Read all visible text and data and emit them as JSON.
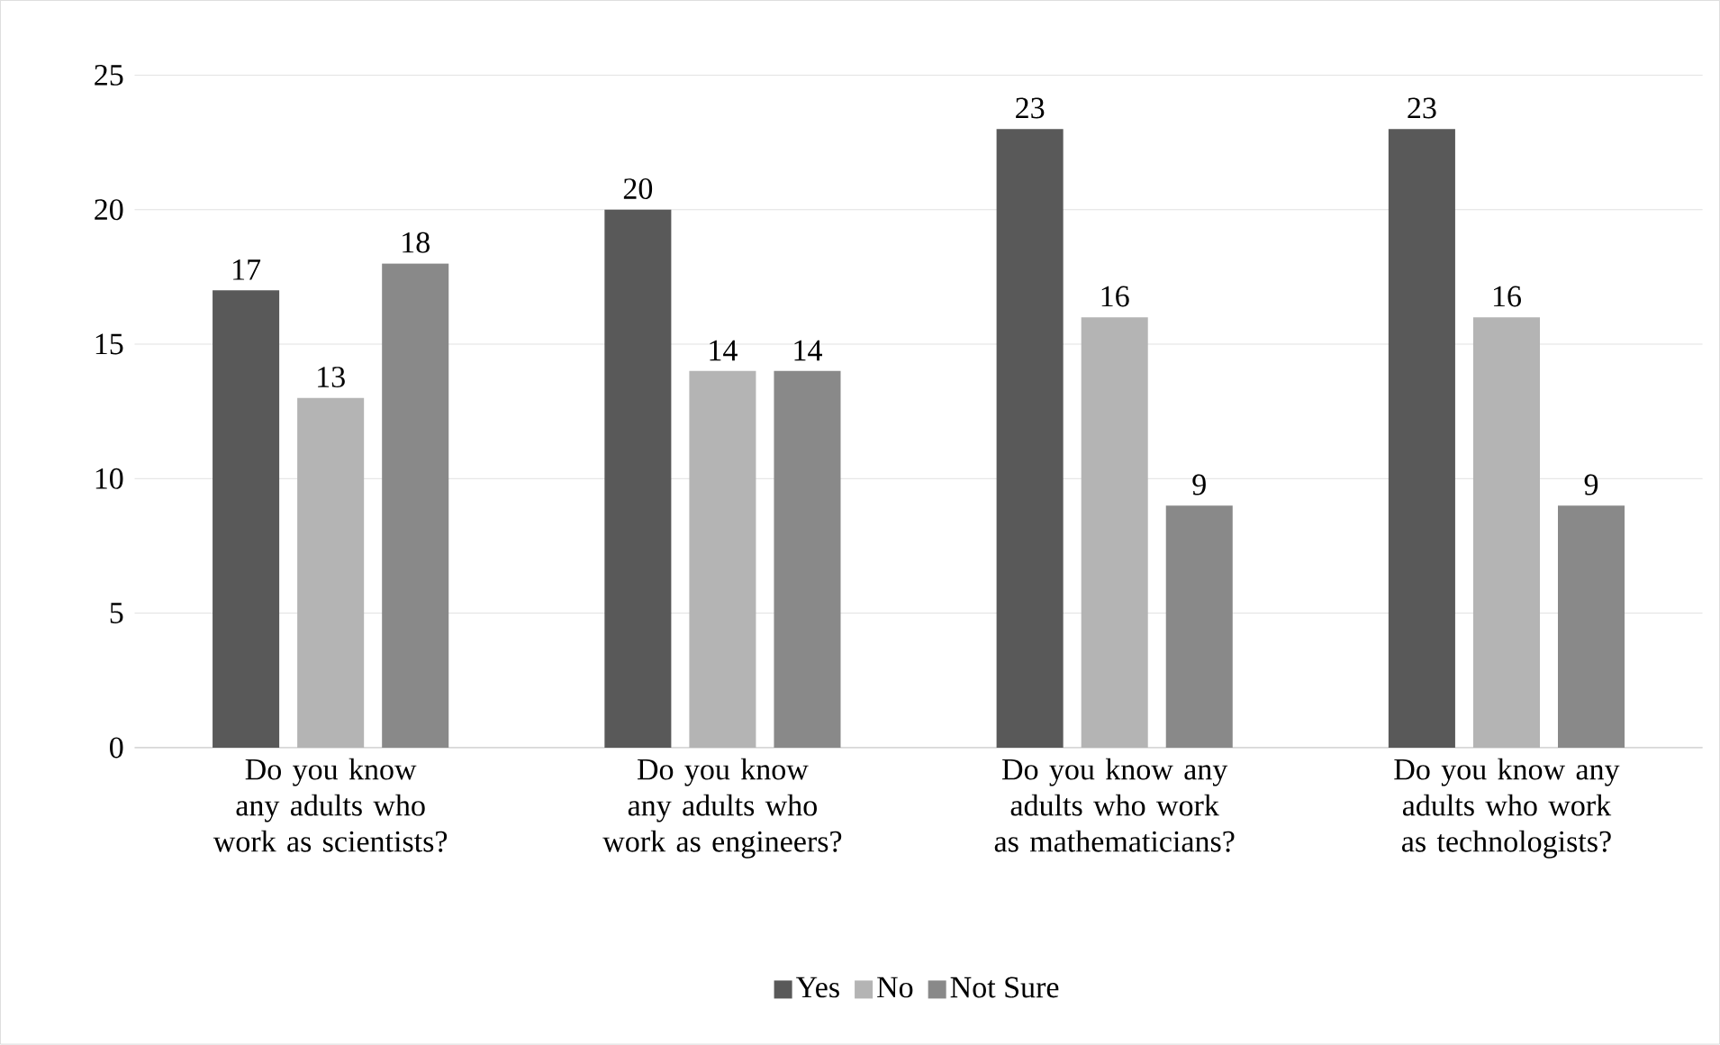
{
  "chart_data": {
    "type": "bar",
    "categories": [
      "Do you know any adults who work as scientists?",
      "Do you know any adults who work as engineers?",
      "Do you know any adults who work as mathematicians?",
      "Do you know any adults who work as technologists?"
    ],
    "series": [
      {
        "name": "Yes",
        "color": "#595959",
        "values": [
          17,
          20,
          23,
          23
        ]
      },
      {
        "name": "No",
        "color": "#b4b4b4",
        "values": [
          13,
          14,
          16,
          16
        ]
      },
      {
        "name": "Not Sure",
        "color": "#898989",
        "values": [
          18,
          14,
          9,
          9
        ]
      }
    ],
    "ylim": [
      0,
      25
    ],
    "yticks": [
      0,
      5,
      10,
      15,
      20,
      25
    ],
    "grid": "y",
    "legend": "bottom",
    "data_labels": true
  }
}
